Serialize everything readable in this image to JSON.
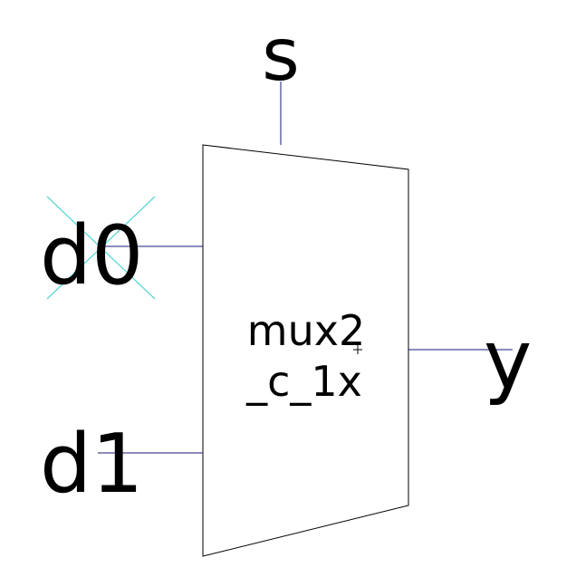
{
  "schematic": {
    "cell": {
      "name_line1": "mux2",
      "name_line2": "_c_1x",
      "outline_color": "#000000",
      "fill_color": "#ffffff"
    },
    "pins": {
      "select": {
        "label": "s"
      },
      "input0": {
        "label": "d0",
        "marker": "x-cross-marker"
      },
      "input1": {
        "label": "d1"
      },
      "output": {
        "label": "y"
      }
    },
    "colors": {
      "wire": "#1a1a7a",
      "marker": "#33cccc",
      "text": "#000000"
    }
  }
}
